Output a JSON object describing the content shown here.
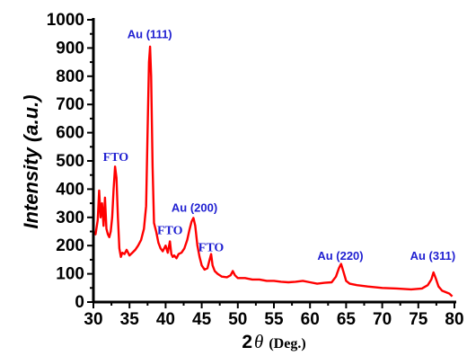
{
  "chart_data": {
    "type": "line",
    "title": "",
    "xlabel": {
      "prefix": "2",
      "symbol": "θ",
      "unit": "(Deg.)"
    },
    "ylabel": "Intensity (a.u.)",
    "xlim": [
      30,
      80
    ],
    "ylim": [
      0,
      1000
    ],
    "xticks": [
      30,
      35,
      40,
      45,
      50,
      55,
      60,
      65,
      70,
      75,
      80
    ],
    "yticks": [
      0,
      100,
      200,
      300,
      400,
      500,
      600,
      700,
      800,
      900,
      1000
    ],
    "grid": false,
    "colors": {
      "trace": "#ff0000",
      "annotation": "#1f1fd1",
      "axis": "#000000"
    },
    "annotations": [
      {
        "text": "Au (111)",
        "x": 37.8,
        "y": 935,
        "style": "sans"
      },
      {
        "text": "FTO",
        "x": 33.1,
        "y": 500,
        "style": "serif"
      },
      {
        "text": "Au (200)",
        "x": 44.0,
        "y": 320,
        "style": "sans"
      },
      {
        "text": "FTO",
        "x": 40.6,
        "y": 240,
        "style": "serif"
      },
      {
        "text": "FTO",
        "x": 46.3,
        "y": 180,
        "style": "serif"
      },
      {
        "text": "Au (220)",
        "x": 64.2,
        "y": 150,
        "style": "sans"
      },
      {
        "text": "Au (311)",
        "x": 77.0,
        "y": 150,
        "style": "sans"
      }
    ],
    "series": [
      {
        "x": [
          30.0,
          30.3,
          30.6,
          30.8,
          31.0,
          31.2,
          31.4,
          31.6,
          31.8,
          32.0,
          32.2,
          32.4,
          32.6,
          32.8,
          33.0,
          33.2,
          33.4,
          33.6,
          33.8,
          34.0,
          34.3,
          34.6,
          35.0,
          35.4,
          35.8,
          36.2,
          36.6,
          37.0,
          37.3,
          37.5,
          37.7,
          37.85,
          38.0,
          38.2,
          38.4,
          38.7,
          39.0,
          39.3,
          39.6,
          40.0,
          40.3,
          40.6,
          40.8,
          41.0,
          41.2,
          41.5,
          41.8,
          42.2,
          42.6,
          43.0,
          43.3,
          43.6,
          43.85,
          44.1,
          44.4,
          44.7,
          45.0,
          45.4,
          45.8,
          46.1,
          46.3,
          46.5,
          46.8,
          47.2,
          47.8,
          48.5,
          49.0,
          49.3,
          49.6,
          50.0,
          51.0,
          52.0,
          53.0,
          54.0,
          55.0,
          56.0,
          57.0,
          58.0,
          59.0,
          60.0,
          61.0,
          62.0,
          63.0,
          63.6,
          64.0,
          64.3,
          64.6,
          65.0,
          65.5,
          66.5,
          68.0,
          70.0,
          72.0,
          74.0,
          75.5,
          76.3,
          76.8,
          77.1,
          77.4,
          77.8,
          78.3,
          78.8,
          79.3,
          79.7
        ],
        "y": [
          250,
          240,
          290,
          395,
          300,
          350,
          270,
          370,
          260,
          240,
          230,
          250,
          300,
          400,
          480,
          440,
          300,
          190,
          160,
          175,
          170,
          185,
          165,
          175,
          185,
          200,
          220,
          260,
          340,
          600,
          850,
          905,
          800,
          480,
          280,
          250,
          210,
          190,
          180,
          200,
          175,
          215,
          170,
          160,
          165,
          155,
          170,
          175,
          190,
          220,
          255,
          285,
          298,
          270,
          200,
          160,
          130,
          115,
          120,
          150,
          170,
          130,
          110,
          100,
          90,
          88,
          95,
          110,
          95,
          85,
          85,
          80,
          80,
          75,
          75,
          72,
          70,
          72,
          75,
          70,
          65,
          68,
          70,
          90,
          120,
          135,
          110,
          75,
          65,
          60,
          55,
          50,
          48,
          45,
          48,
          60,
          80,
          105,
          85,
          55,
          40,
          35,
          30,
          20
        ]
      }
    ]
  }
}
